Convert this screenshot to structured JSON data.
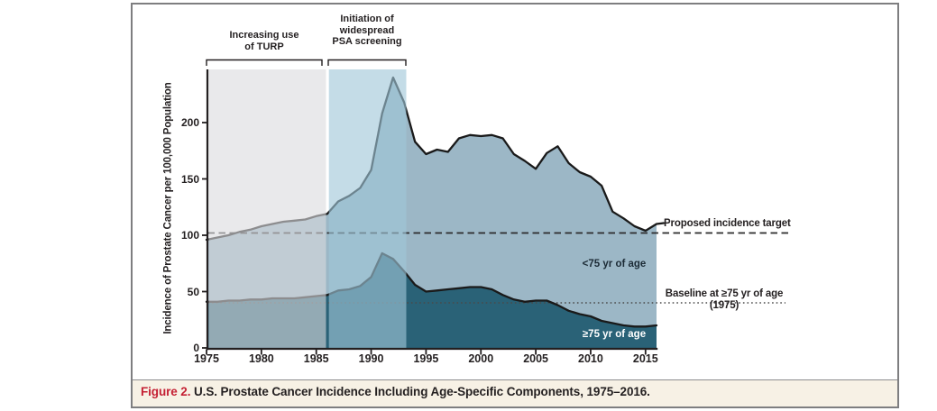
{
  "figure": {
    "caption_label": "Figure 2.",
    "caption_text": " U.S. Prostate Cancer Incidence Including Age-Specific Components, 1975–2016."
  },
  "chart_data": {
    "type": "area",
    "title": "U.S. Prostate Cancer Incidence Including Age-Specific Components, 1975-2016",
    "xlabel": "",
    "ylabel": "Incidence of Prostate Cancer per 100,000 Population",
    "xlim": [
      1975,
      2016
    ],
    "ylim": [
      0,
      245
    ],
    "grid": false,
    "x_ticks": [
      1975,
      1980,
      1985,
      1990,
      1995,
      2000,
      2005,
      2010,
      2015
    ],
    "y_ticks": [
      0,
      50,
      100,
      150,
      200
    ],
    "x": [
      1975,
      1976,
      1977,
      1978,
      1979,
      1980,
      1981,
      1982,
      1983,
      1984,
      1985,
      1986,
      1987,
      1988,
      1989,
      1990,
      1991,
      1992,
      1993,
      1994,
      1995,
      1996,
      1997,
      1998,
      1999,
      2000,
      2001,
      2002,
      2003,
      2004,
      2005,
      2006,
      2007,
      2008,
      2009,
      2010,
      2011,
      2012,
      2013,
      2014,
      2015,
      2016
    ],
    "series": [
      {
        "name": "<75 yr of age",
        "values": [
          96,
          98,
          100,
          103,
          105,
          108,
          110,
          112,
          113,
          114,
          117,
          119,
          130,
          135,
          142,
          158,
          208,
          240,
          218,
          183,
          172,
          176,
          174,
          186,
          189,
          188,
          189,
          186,
          172,
          166,
          159,
          173,
          179,
          164,
          156,
          152,
          144,
          121,
          115,
          108,
          104,
          110
        ]
      },
      {
        "name": "≥75 yr of age",
        "values": [
          41,
          41,
          42,
          42,
          43,
          43,
          44,
          44,
          44,
          45,
          46,
          47,
          51,
          52,
          55,
          63,
          84,
          79,
          68,
          56,
          50,
          51,
          52,
          53,
          54,
          54,
          52,
          47,
          43,
          41,
          42,
          42,
          38,
          33,
          30,
          28,
          24,
          22,
          20,
          19,
          19,
          20
        ]
      }
    ],
    "regions": {
      "turp_span_years": [
        1975.2,
        1986.0
      ],
      "psa_span_years": [
        1986.15,
        1993.2
      ]
    },
    "annotations": {
      "turp_line1": "Increasing use",
      "turp_line2": "of TURP",
      "psa_line1": "Initiation of",
      "psa_line2": "widespread",
      "psa_line3": "PSA screening",
      "proposed_target": "Proposed incidence target",
      "proposed_target_value": 102,
      "baseline_line1": "Baseline at ≥75 yr of age",
      "baseline_line2": "(1975)",
      "baseline_value": 40,
      "label_under75": "<75 yr of age",
      "label_over75": "≥75 yr of age"
    },
    "colors": {
      "under75_fill": "#9cb7c6",
      "over75_fill": "#2a6277",
      "series_line": "#1a1a1a",
      "turp_overlay": "rgba(219,219,222,0.60)",
      "psa_overlay": "rgba(160,198,216,0.62)",
      "target_dash": "#2b2b2b",
      "baseline_dot": "#4a4a4a",
      "axis": "#231f20",
      "caption_red": "#c41f33",
      "caption_bg": "#f7f1e5"
    }
  }
}
